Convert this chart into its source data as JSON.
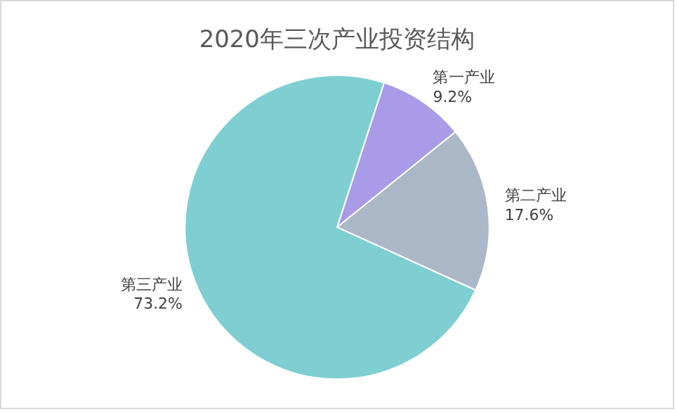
{
  "chart_data": {
    "type": "pie",
    "title": "2020年三次产业投资结构",
    "categories": [
      "第一产业",
      "第二产业",
      "第三产业"
    ],
    "values": [
      9.2,
      17.6,
      73.2
    ],
    "colors": [
      "#a99be8",
      "#aab8c8",
      "#7fcfd2"
    ],
    "value_labels": [
      "9.2%",
      "17.6%",
      "73.2%"
    ],
    "legend": false
  }
}
